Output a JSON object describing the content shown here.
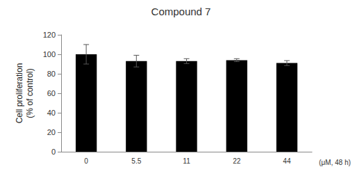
{
  "chart_data": {
    "type": "bar",
    "title": "Compound 7",
    "y_label": "Cell proliferation\n(% of control)",
    "x_label": "(μM, 48 h)",
    "categories": [
      "0",
      "5.5",
      "11",
      "22",
      "44"
    ],
    "values": [
      100,
      93,
      93,
      94,
      91
    ],
    "errors": [
      10,
      6,
      2.5,
      1.5,
      2.5
    ],
    "color": "#000000",
    "ylim": [
      0,
      120
    ],
    "yticks": [
      0,
      20,
      40,
      60,
      80,
      100,
      120
    ],
    "grid": false
  }
}
